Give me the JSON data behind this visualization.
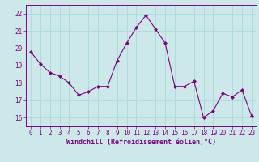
{
  "x": [
    0,
    1,
    2,
    3,
    4,
    5,
    6,
    7,
    8,
    9,
    10,
    11,
    12,
    13,
    14,
    15,
    16,
    17,
    18,
    19,
    20,
    21,
    22,
    23
  ],
  "y": [
    19.8,
    19.1,
    18.6,
    18.4,
    18.0,
    17.3,
    17.5,
    17.8,
    17.8,
    19.3,
    20.3,
    21.2,
    21.9,
    21.1,
    20.3,
    17.8,
    17.8,
    18.1,
    16.0,
    16.4,
    17.4,
    17.2,
    17.6,
    16.1
  ],
  "line_color": "#800080",
  "marker": "D",
  "marker_size": 2.0,
  "line_width": 0.8,
  "bg_color": "#cce8e8",
  "grid_color": "#aadddd",
  "xlabel": "Windchill (Refroidissement éolien,°C)",
  "xlabel_fontsize": 6.0,
  "tick_fontsize": 5.5,
  "ylim": [
    15.5,
    22.5
  ],
  "yticks": [
    16,
    17,
    18,
    19,
    20,
    21,
    22
  ],
  "xlim": [
    -0.5,
    23.5
  ],
  "xticks": [
    0,
    1,
    2,
    3,
    4,
    5,
    6,
    7,
    8,
    9,
    10,
    11,
    12,
    13,
    14,
    15,
    16,
    17,
    18,
    19,
    20,
    21,
    22,
    23
  ]
}
